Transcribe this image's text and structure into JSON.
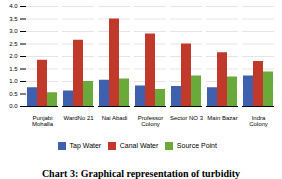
{
  "chart_data": {
    "type": "bar",
    "title": "Chart 3: Graphical representation of turbidity",
    "categories": [
      "Punjabi\nMohalla",
      "WardNo 21",
      "Nai Abadi",
      "Professor\nColony",
      "Sector NO 3",
      "Main Bazar",
      "Indra\nColony"
    ],
    "series": [
      {
        "name": "Tap Water",
        "color": "#3f5faf",
        "values": [
          0.75,
          0.62,
          1.05,
          0.82,
          0.8,
          0.75,
          1.22
        ]
      },
      {
        "name": "Canal Water",
        "color": "#c0392b",
        "values": [
          1.85,
          2.65,
          3.5,
          2.9,
          2.5,
          2.15,
          1.8
        ]
      },
      {
        "name": "Source Point",
        "color": "#6aaa3a",
        "values": [
          0.55,
          1.0,
          1.1,
          0.68,
          1.22,
          1.18,
          1.38
        ]
      }
    ],
    "ylim": [
      0,
      4
    ],
    "yticks": [
      {
        "value": 0,
        "label": "0.0"
      },
      0.5,
      {
        "value": 1,
        "label": "1.0"
      },
      1.5,
      {
        "value": 2,
        "label": "2.0"
      },
      2.5,
      {
        "value": 3,
        "label": "3.0"
      },
      3.5,
      {
        "value": 4,
        "label": "4.0"
      }
    ],
    "grid": true,
    "legend": "bottom"
  }
}
